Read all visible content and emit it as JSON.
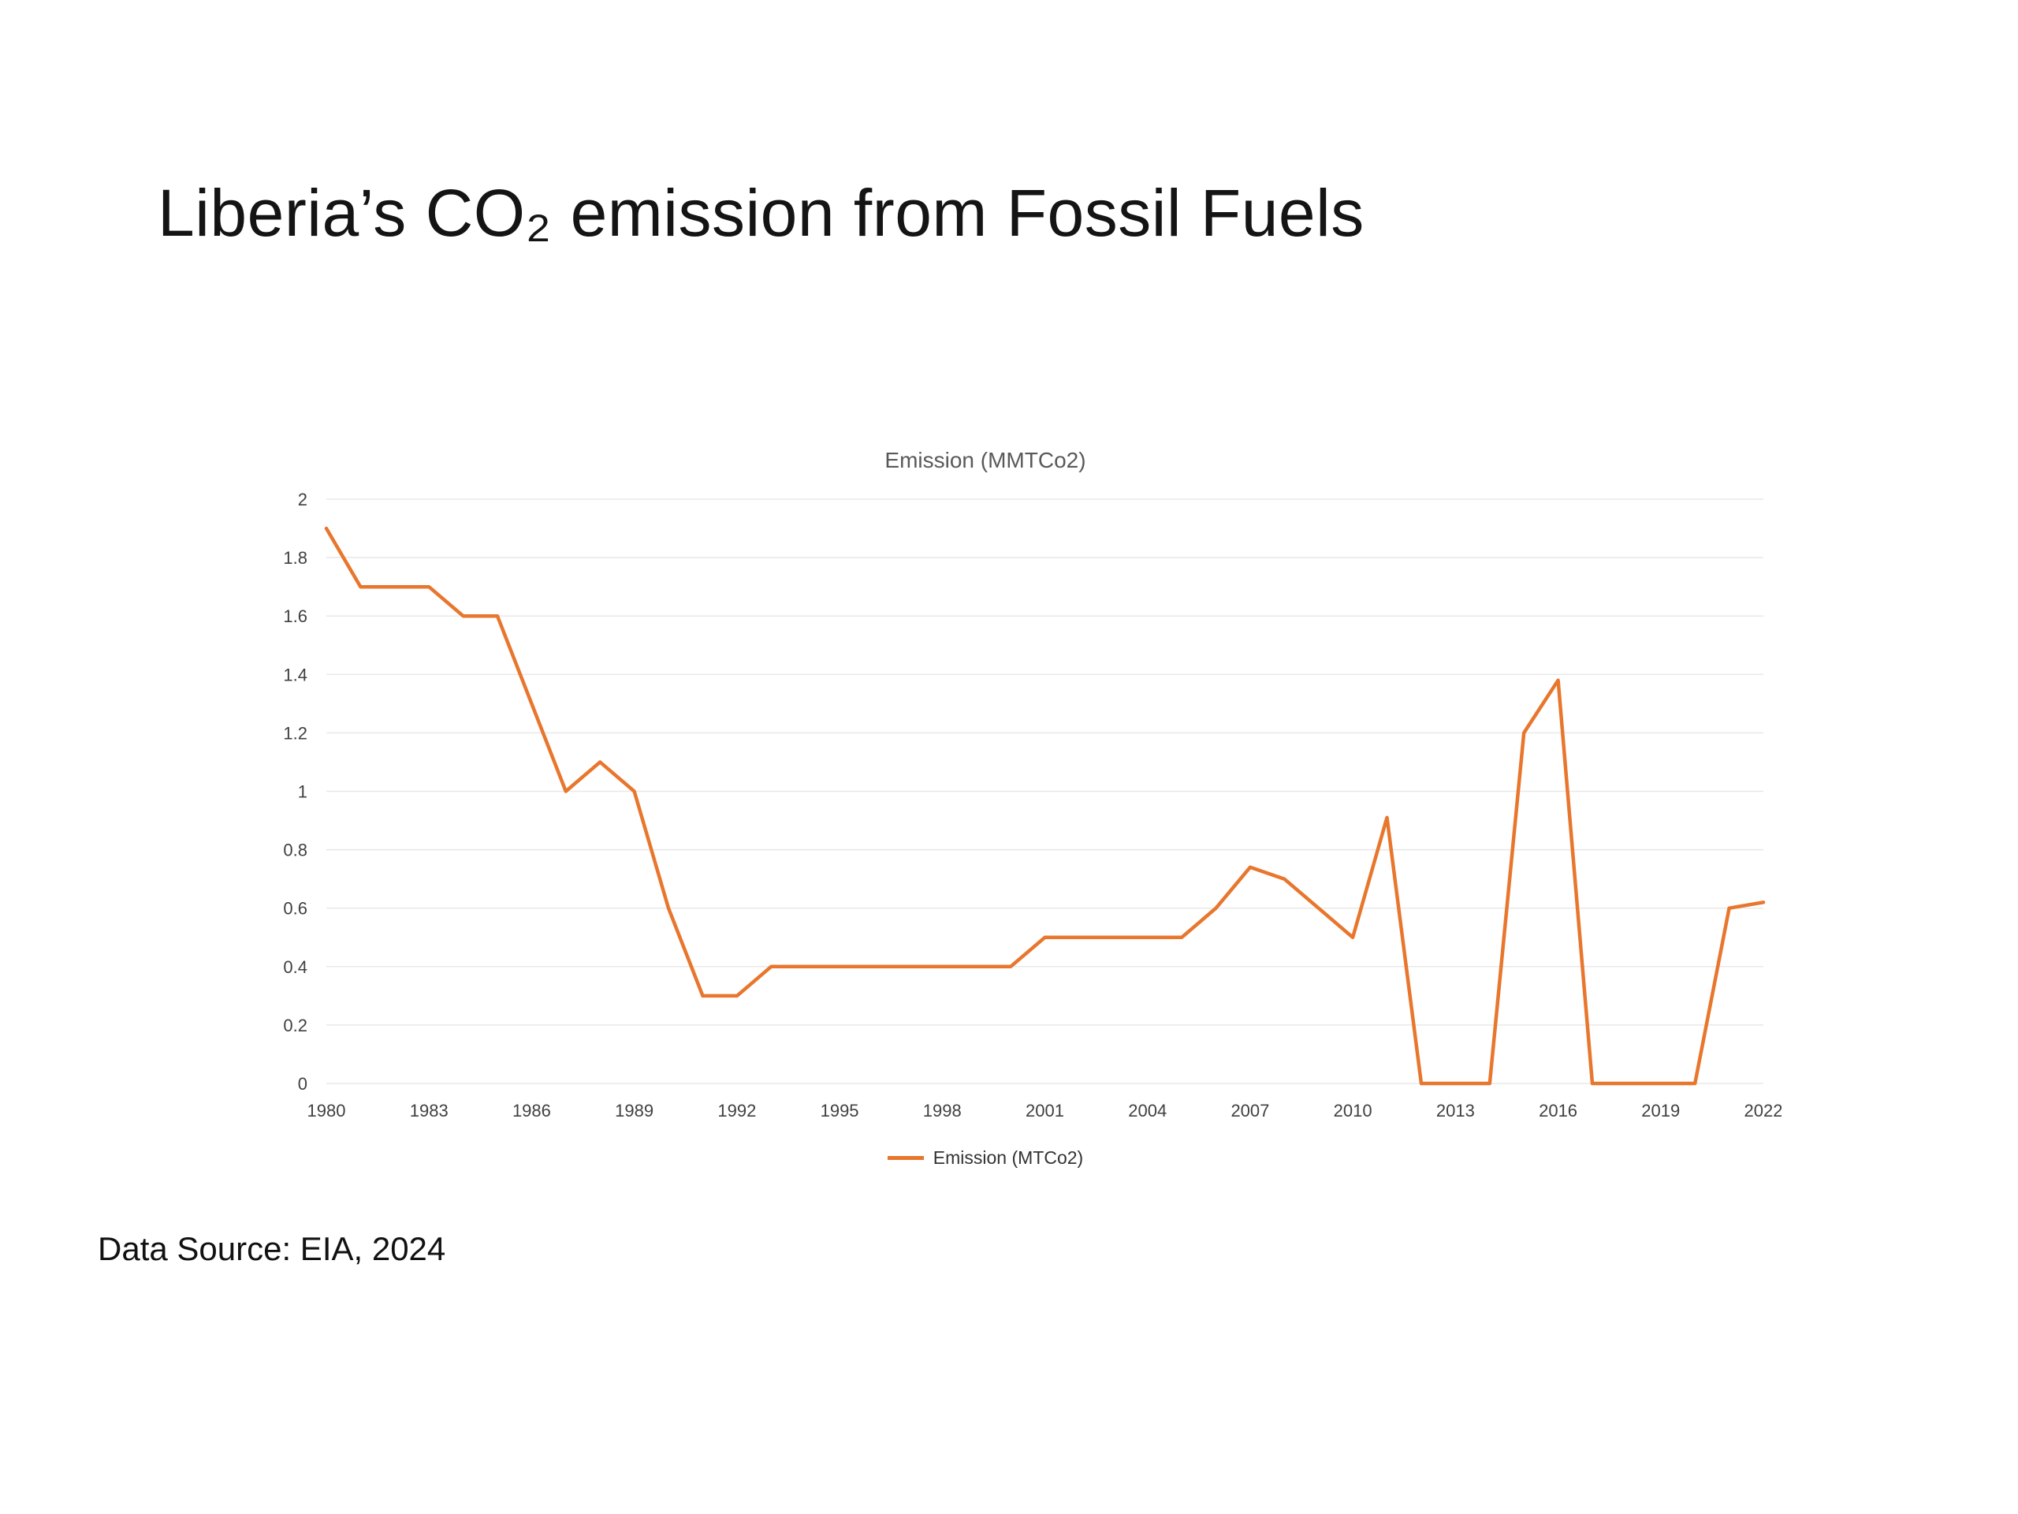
{
  "slide": {
    "title": "Liberia’s CO₂ emission from Fossil Fuels",
    "source": "Data Source: EIA, 2024"
  },
  "chart_data": {
    "type": "line",
    "title": "Emission (MMTCo2)",
    "legend": "Emission (MTCo2)",
    "legend_position": "bottom",
    "grid": true,
    "line_color": "#E8762D",
    "grid_color": "#E8E8E8",
    "ylim": [
      0,
      2
    ],
    "ytick_step": 0.2,
    "xticks": [
      1980,
      1983,
      1986,
      1989,
      1992,
      1995,
      1998,
      2001,
      2004,
      2007,
      2010,
      2013,
      2016,
      2019,
      2022
    ],
    "x": [
      1980,
      1981,
      1982,
      1983,
      1984,
      1985,
      1986,
      1987,
      1988,
      1989,
      1990,
      1991,
      1992,
      1993,
      1994,
      1995,
      1996,
      1997,
      1998,
      1999,
      2000,
      2001,
      2002,
      2003,
      2004,
      2005,
      2006,
      2007,
      2008,
      2009,
      2010,
      2011,
      2012,
      2013,
      2014,
      2015,
      2016,
      2017,
      2018,
      2019,
      2020,
      2021,
      2022
    ],
    "values": [
      1.9,
      1.7,
      1.7,
      1.7,
      1.6,
      1.6,
      1.3,
      1.0,
      1.1,
      1.0,
      0.6,
      0.3,
      0.3,
      0.4,
      0.4,
      0.4,
      0.4,
      0.4,
      0.4,
      0.4,
      0.4,
      0.5,
      0.5,
      0.5,
      0.5,
      0.5,
      0.6,
      0.74,
      0.7,
      0.6,
      0.5,
      0.91,
      0,
      0,
      0,
      1.2,
      1.38,
      0,
      0,
      0,
      0,
      0.6,
      0.62
    ]
  }
}
